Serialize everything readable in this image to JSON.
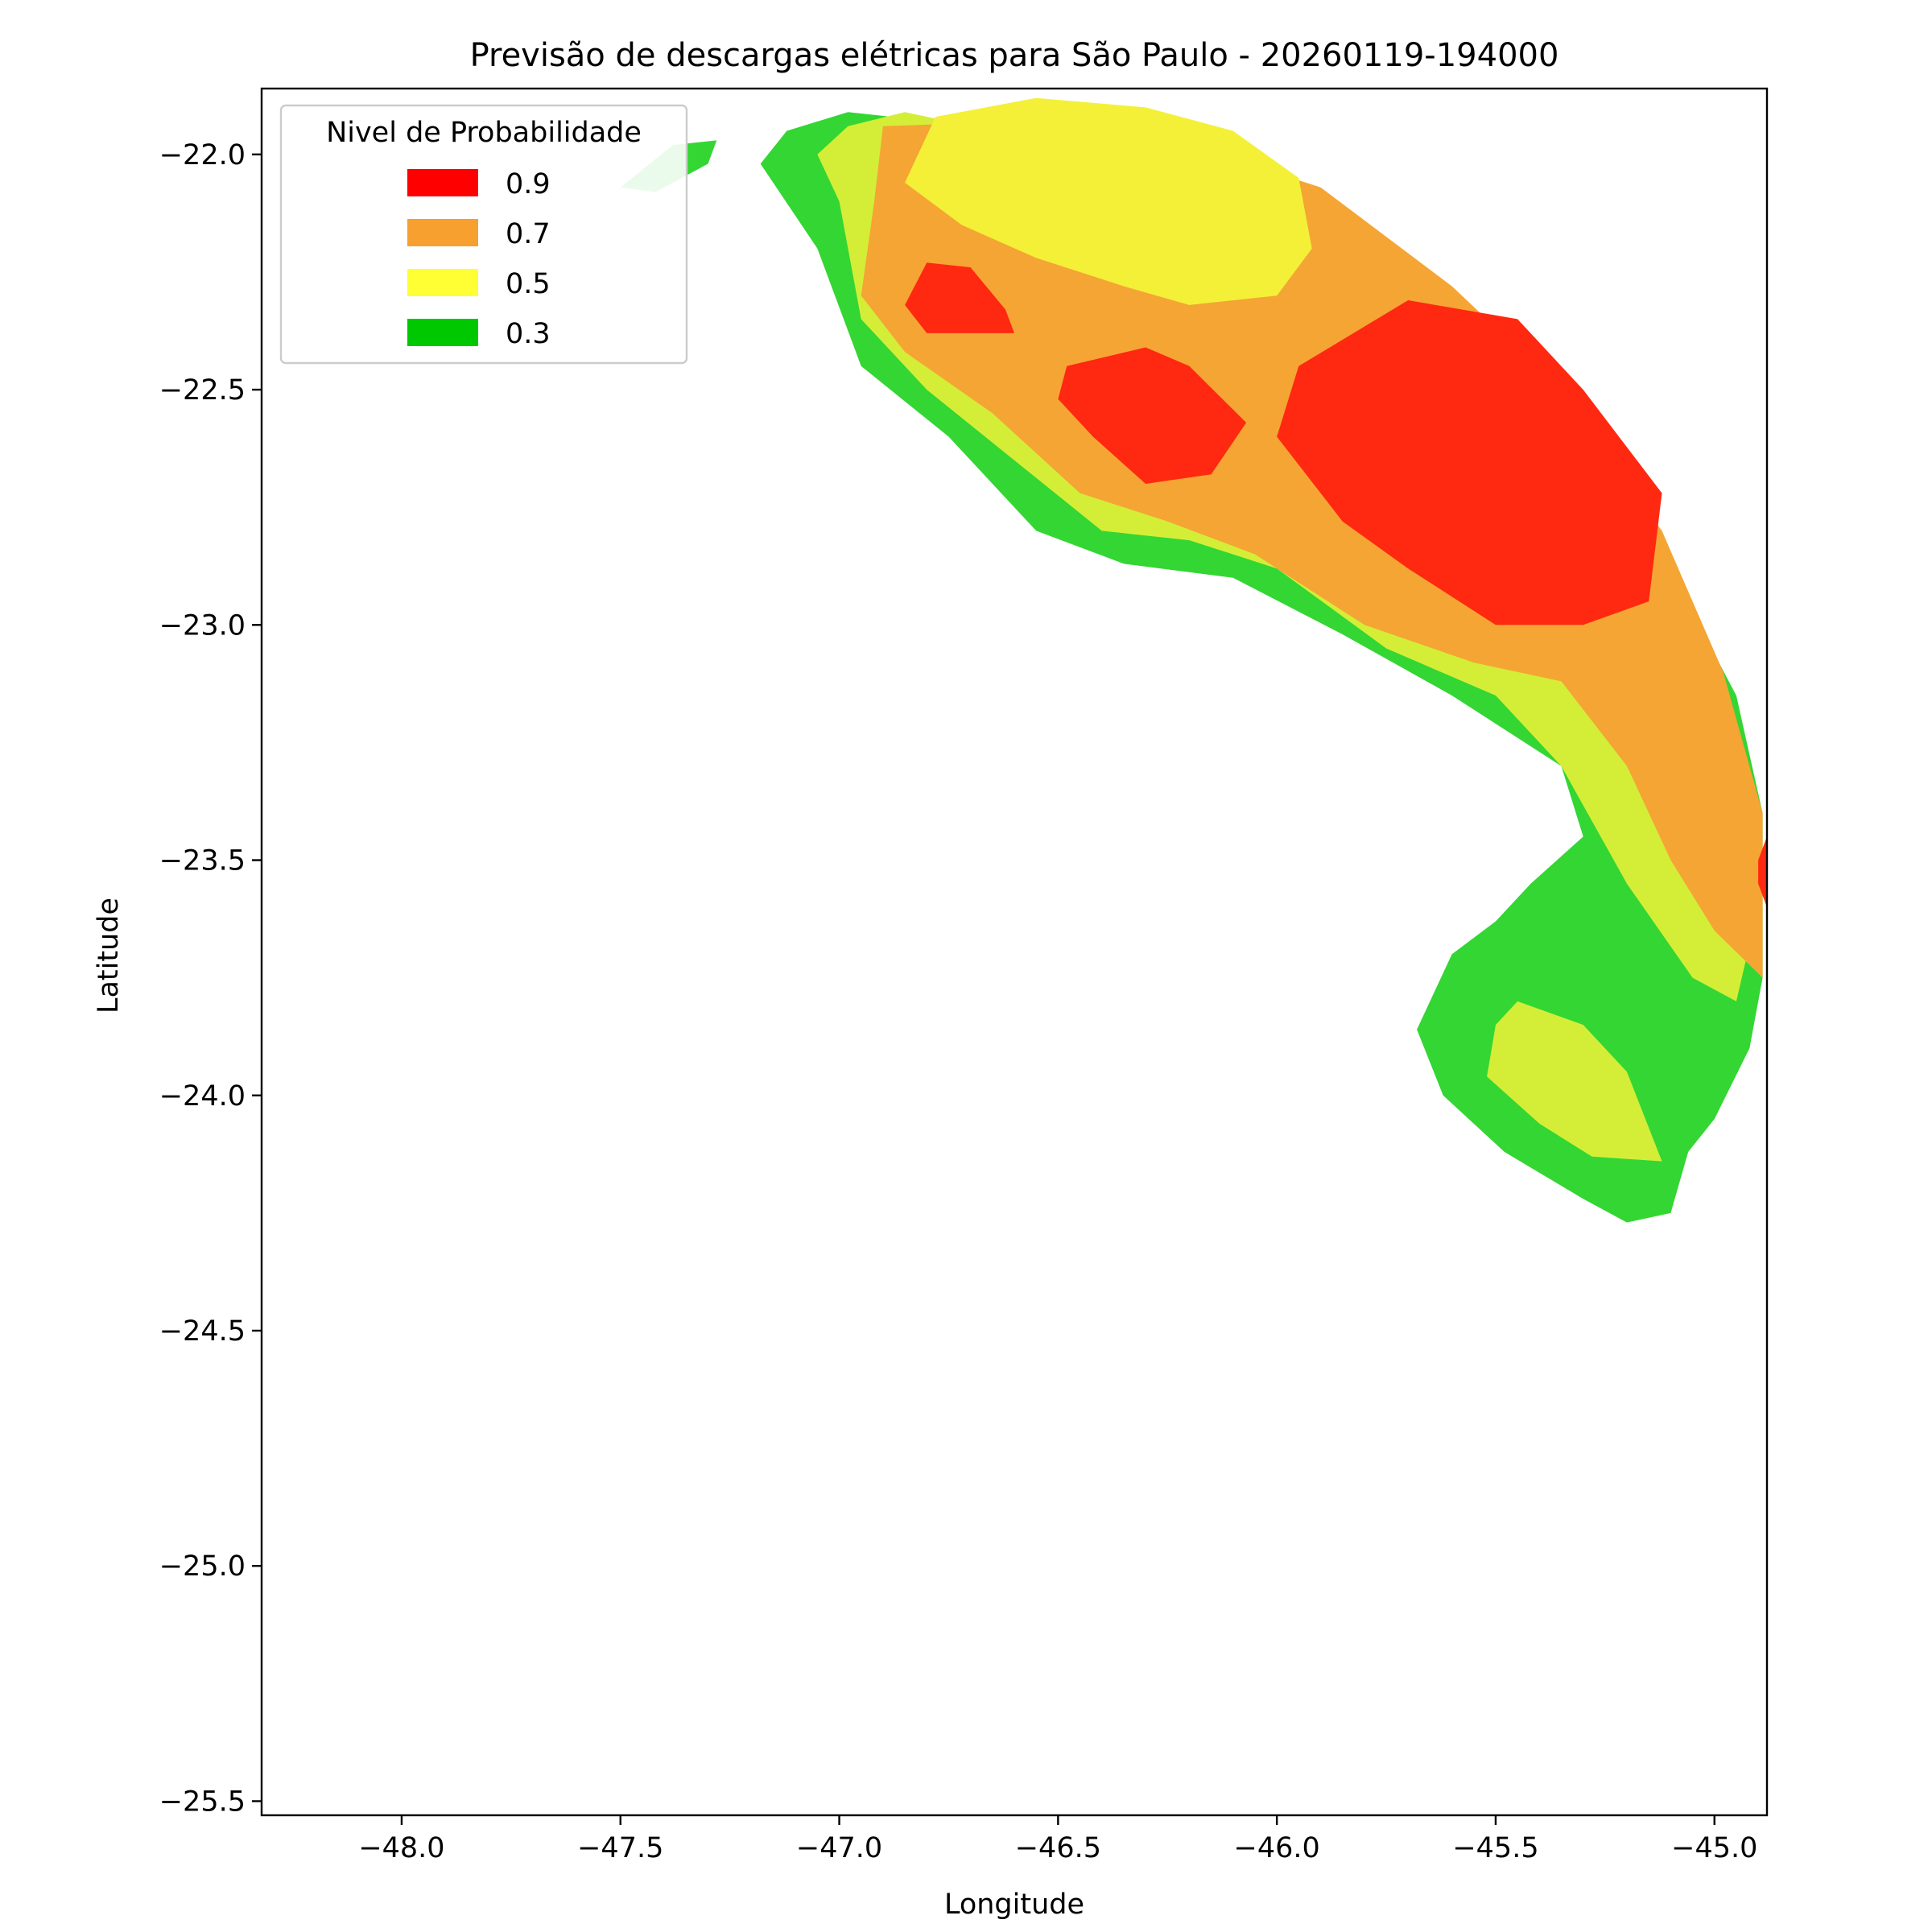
{
  "chart_data": {
    "type": "heatmap",
    "title": "Previsão de descargas elétricas para São Paulo - 20260119-194000",
    "xlabel": "Longitude",
    "ylabel": "Latitude",
    "xlim": [
      -48.32,
      -44.88
    ],
    "ylim": [
      -25.53,
      -21.86
    ],
    "xticks": [
      -48.0,
      -47.5,
      -47.0,
      -46.5,
      -46.0,
      -45.5,
      -45.0
    ],
    "xtick_labels": [
      "−48.0",
      "−47.5",
      "−47.0",
      "−46.5",
      "−46.0",
      "−45.5",
      "−45.0"
    ],
    "yticks": [
      -22.0,
      -22.5,
      -23.0,
      -23.5,
      -24.0,
      -24.5,
      -25.0,
      -25.5
    ],
    "ytick_labels": [
      "−22.0",
      "−22.5",
      "−23.0",
      "−23.5",
      "−24.0",
      "−24.5",
      "−25.0",
      "−25.5"
    ],
    "grid": false,
    "legend": {
      "title": "Nivel de Probabilidade",
      "placement": "top-left",
      "entries": [
        {
          "label": "0.9",
          "color": "#ff0000"
        },
        {
          "label": "0.7",
          "color": "#f7a030"
        },
        {
          "label": "0.5",
          "color": "#ffff33"
        },
        {
          "label": "0.3",
          "color": "#00c800"
        }
      ]
    },
    "levels": [
      {
        "level": 0.3,
        "color": "#33d633",
        "polygons": [
          [
            [
              -47.12,
              -21.95
            ],
            [
              -46.98,
              -21.91
            ],
            [
              -46.88,
              -21.92
            ],
            [
              -46.58,
              -22.03
            ],
            [
              -46.3,
              -22.1
            ],
            [
              -45.99,
              -22.2
            ],
            [
              -45.7,
              -22.33
            ],
            [
              -45.4,
              -22.6
            ],
            [
              -45.12,
              -22.85
            ],
            [
              -44.95,
              -23.15
            ],
            [
              -44.89,
              -23.4
            ],
            [
              -44.89,
              -23.75
            ],
            [
              -44.92,
              -23.9
            ],
            [
              -45.0,
              -24.05
            ],
            [
              -45.06,
              -24.12
            ],
            [
              -45.1,
              -24.25
            ],
            [
              -45.2,
              -24.27
            ],
            [
              -45.3,
              -24.22
            ],
            [
              -45.48,
              -24.12
            ],
            [
              -45.62,
              -24.0
            ],
            [
              -45.68,
              -23.86
            ],
            [
              -45.6,
              -23.7
            ],
            [
              -45.5,
              -23.63
            ],
            [
              -45.42,
              -23.55
            ],
            [
              -45.3,
              -23.45
            ],
            [
              -45.35,
              -23.3
            ],
            [
              -45.6,
              -23.15
            ],
            [
              -45.85,
              -23.02
            ],
            [
              -46.1,
              -22.9
            ],
            [
              -46.35,
              -22.87
            ],
            [
              -46.55,
              -22.8
            ],
            [
              -46.75,
              -22.6
            ],
            [
              -46.95,
              -22.45
            ],
            [
              -47.05,
              -22.2
            ],
            [
              -47.18,
              -22.02
            ]
          ],
          [
            [
              -47.5,
              -22.07
            ],
            [
              -47.38,
              -21.98
            ],
            [
              -47.28,
              -21.97
            ],
            [
              -47.3,
              -22.02
            ],
            [
              -47.42,
              -22.08
            ]
          ]
        ]
      },
      {
        "level": 0.5,
        "color": "#d4ee38",
        "polygons": [
          [
            [
              -46.98,
              -21.94
            ],
            [
              -46.85,
              -21.91
            ],
            [
              -46.6,
              -21.96
            ],
            [
              -46.3,
              -22.0
            ],
            [
              -46.05,
              -22.03
            ],
            [
              -45.8,
              -22.2
            ],
            [
              -45.55,
              -22.4
            ],
            [
              -45.3,
              -22.6
            ],
            [
              -45.1,
              -22.85
            ],
            [
              -45.0,
              -23.1
            ],
            [
              -44.93,
              -23.3
            ],
            [
              -44.9,
              -23.6
            ],
            [
              -44.95,
              -23.8
            ],
            [
              -45.05,
              -23.75
            ],
            [
              -45.2,
              -23.55
            ],
            [
              -45.35,
              -23.3
            ],
            [
              -45.5,
              -23.15
            ],
            [
              -45.75,
              -23.05
            ],
            [
              -46.0,
              -22.88
            ],
            [
              -46.2,
              -22.82
            ],
            [
              -46.4,
              -22.8
            ],
            [
              -46.6,
              -22.65
            ],
            [
              -46.8,
              -22.5
            ],
            [
              -46.95,
              -22.35
            ],
            [
              -47.0,
              -22.1
            ],
            [
              -47.05,
              -22.0
            ]
          ],
          [
            [
              -45.45,
              -23.8
            ],
            [
              -45.3,
              -23.85
            ],
            [
              -45.2,
              -23.95
            ],
            [
              -45.12,
              -24.14
            ],
            [
              -45.28,
              -24.13
            ],
            [
              -45.4,
              -24.06
            ],
            [
              -45.52,
              -23.96
            ],
            [
              -45.5,
              -23.85
            ]
          ]
        ]
      },
      {
        "level": 0.7,
        "color": "#f5a534",
        "polygons": [
          [
            [
              -46.9,
              -21.94
            ],
            [
              -46.6,
              -21.93
            ],
            [
              -46.2,
              -21.98
            ],
            [
              -45.9,
              -22.07
            ],
            [
              -45.6,
              -22.28
            ],
            [
              -45.35,
              -22.5
            ],
            [
              -45.12,
              -22.8
            ],
            [
              -44.98,
              -23.1
            ],
            [
              -44.89,
              -23.4
            ],
            [
              -44.89,
              -23.75
            ],
            [
              -45.0,
              -23.65
            ],
            [
              -45.1,
              -23.5
            ],
            [
              -45.2,
              -23.3
            ],
            [
              -45.35,
              -23.12
            ],
            [
              -45.55,
              -23.08
            ],
            [
              -45.8,
              -23.0
            ],
            [
              -46.05,
              -22.85
            ],
            [
              -46.25,
              -22.78
            ],
            [
              -46.45,
              -22.72
            ],
            [
              -46.65,
              -22.55
            ],
            [
              -46.85,
              -22.42
            ],
            [
              -46.95,
              -22.3
            ],
            [
              -46.92,
              -22.1
            ]
          ]
        ]
      },
      {
        "level": 0.5,
        "color": "#f4f038",
        "polygons": [
          [
            [
              -46.85,
              -22.06
            ],
            [
              -46.78,
              -21.92
            ],
            [
              -46.55,
              -21.88
            ],
            [
              -46.3,
              -21.9
            ],
            [
              -46.1,
              -21.95
            ],
            [
              -45.95,
              -22.05
            ],
            [
              -45.92,
              -22.2
            ],
            [
              -46.0,
              -22.3
            ],
            [
              -46.2,
              -22.32
            ],
            [
              -46.35,
              -22.28
            ],
            [
              -46.55,
              -22.22
            ],
            [
              -46.72,
              -22.15
            ]
          ]
        ]
      },
      {
        "level": 0.9,
        "color": "#ff2810",
        "polygons": [
          [
            [
              -46.85,
              -22.32
            ],
            [
              -46.8,
              -22.23
            ],
            [
              -46.7,
              -22.24
            ],
            [
              -46.62,
              -22.33
            ],
            [
              -46.6,
              -22.38
            ],
            [
              -46.8,
              -22.38
            ]
          ],
          [
            [
              -46.48,
              -22.45
            ],
            [
              -46.3,
              -22.41
            ],
            [
              -46.2,
              -22.45
            ],
            [
              -46.07,
              -22.57
            ],
            [
              -46.15,
              -22.68
            ],
            [
              -46.3,
              -22.7
            ],
            [
              -46.42,
              -22.6
            ],
            [
              -46.5,
              -22.52
            ]
          ],
          [
            [
              -45.95,
              -22.45
            ],
            [
              -45.7,
              -22.31
            ],
            [
              -45.45,
              -22.35
            ],
            [
              -45.3,
              -22.5
            ],
            [
              -45.12,
              -22.72
            ],
            [
              -45.15,
              -22.95
            ],
            [
              -45.3,
              -23.0
            ],
            [
              -45.5,
              -23.0
            ],
            [
              -45.7,
              -22.88
            ],
            [
              -45.85,
              -22.78
            ],
            [
              -46.0,
              -22.6
            ]
          ],
          [
            [
              -44.9,
              -23.5
            ],
            [
              -44.88,
              -23.45
            ],
            [
              -44.88,
              -23.6
            ],
            [
              -44.9,
              -23.55
            ]
          ]
        ]
      }
    ]
  }
}
